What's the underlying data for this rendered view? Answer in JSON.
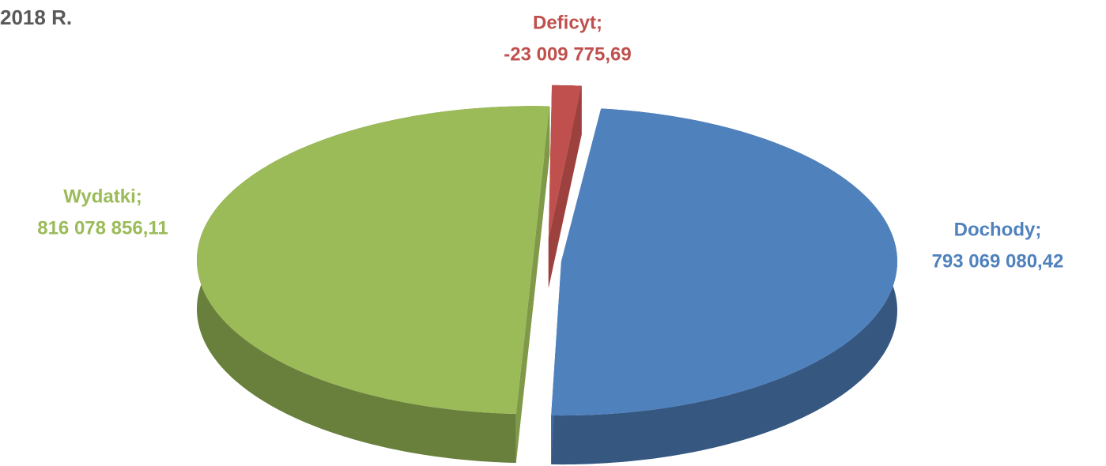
{
  "chart_data": {
    "type": "pie",
    "title": "2018 R.",
    "categories": [
      "Deficyt;",
      "Dochody;",
      "Wydatki;"
    ],
    "values": [
      -23009775.69,
      793069080.42,
      816078856.11
    ],
    "value_labels": [
      "-23 009 775,69",
      "793 069 080,42",
      "816 078 856,11"
    ],
    "colors": [
      "#c0504d",
      "#4f81bd",
      "#9bbb59"
    ]
  }
}
